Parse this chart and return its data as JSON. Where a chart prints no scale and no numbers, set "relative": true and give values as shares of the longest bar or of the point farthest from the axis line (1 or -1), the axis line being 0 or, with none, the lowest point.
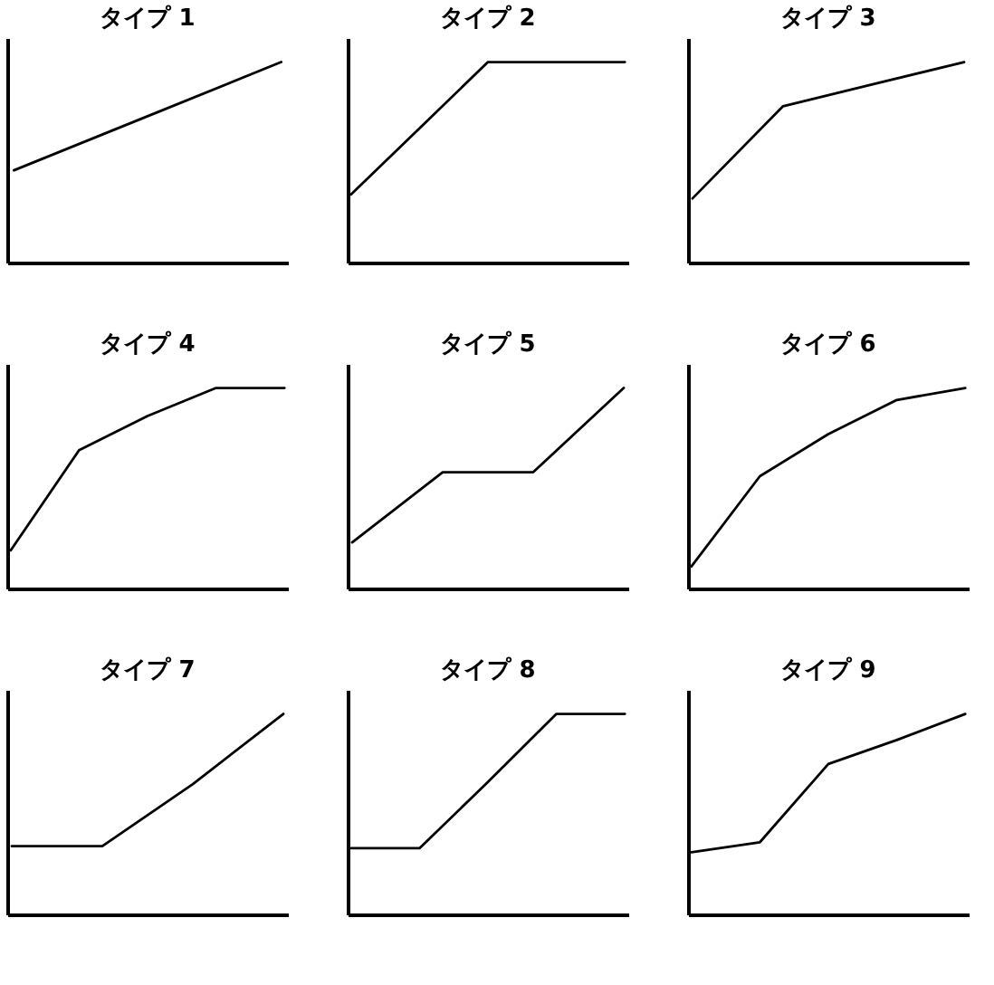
{
  "chart_data": [
    {
      "type": "line",
      "title": "タイプ 1",
      "relative": true,
      "color": "#000000",
      "categories": [
        null,
        null,
        null
      ],
      "values": [
        0.46,
        0.73,
        1
      ]
    },
    {
      "type": "line",
      "title": "タイプ 2",
      "relative": true,
      "color": "#000000",
      "categories": [
        null,
        null,
        null,
        null,
        null
      ],
      "values": [
        0.34,
        0.67,
        1,
        1,
        1
      ]
    },
    {
      "type": "line",
      "title": "タイプ 3",
      "relative": true,
      "color": "#000000",
      "categories": [
        null,
        null,
        null,
        null
      ],
      "values": [
        0.32,
        0.78,
        0.89,
        1
      ]
    },
    {
      "type": "line",
      "title": "タイプ 4",
      "relative": true,
      "color": "#000000",
      "categories": [
        null,
        null,
        null,
        null,
        null
      ],
      "values": [
        0.19,
        0.69,
        0.86,
        1,
        1
      ]
    },
    {
      "type": "line",
      "title": "タイプ 5",
      "relative": true,
      "color": "#000000",
      "categories": [
        null,
        null,
        null,
        null
      ],
      "values": [
        0.23,
        0.58,
        0.58,
        1
      ]
    },
    {
      "type": "line",
      "title": "タイプ 6",
      "relative": true,
      "color": "#000000",
      "categories": [
        null,
        null,
        null,
        null,
        null
      ],
      "values": [
        0.11,
        0.56,
        0.77,
        0.94,
        1
      ]
    },
    {
      "type": "line",
      "title": "タイプ 7",
      "relative": true,
      "color": "#000000",
      "categories": [
        null,
        null,
        null,
        null
      ],
      "values": [
        0.34,
        0.34,
        0.65,
        1
      ]
    },
    {
      "type": "line",
      "title": "タイプ 8",
      "relative": true,
      "color": "#000000",
      "categories": [
        null,
        null,
        null,
        null,
        null
      ],
      "values": [
        0.33,
        0.33,
        0.66,
        1,
        1
      ]
    },
    {
      "type": "line",
      "title": "タイプ 9",
      "relative": true,
      "color": "#000000",
      "categories": [
        null,
        null,
        null,
        null,
        null
      ],
      "values": [
        0.31,
        0.36,
        0.75,
        0.87,
        1
      ]
    }
  ]
}
